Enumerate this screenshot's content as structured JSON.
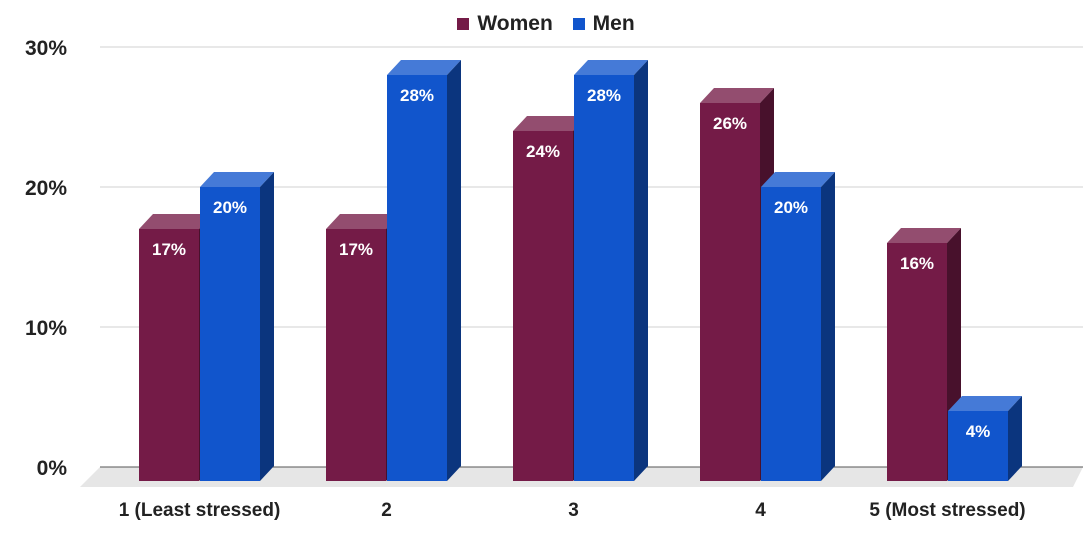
{
  "chart_data": {
    "type": "bar",
    "title": "",
    "xlabel": "",
    "ylabel": "",
    "ylim": [
      0,
      30
    ],
    "yticks": [
      "0%",
      "10%",
      "20%",
      "30%"
    ],
    "grid": true,
    "legend_position": "top-center",
    "categories": [
      "1 (Least stressed)",
      "2",
      "3",
      "4",
      "5 (Most stressed)"
    ],
    "series": [
      {
        "name": "Women",
        "color": "#741b47",
        "values": [
          17,
          17,
          24,
          26,
          16
        ],
        "labels": [
          "17%",
          "17%",
          "24%",
          "26%",
          "16%"
        ]
      },
      {
        "name": "Men",
        "color": "#1155cc",
        "values": [
          20,
          28,
          28,
          20,
          4
        ],
        "labels": [
          "20%",
          "28%",
          "28%",
          "20%",
          "4%"
        ]
      }
    ]
  }
}
